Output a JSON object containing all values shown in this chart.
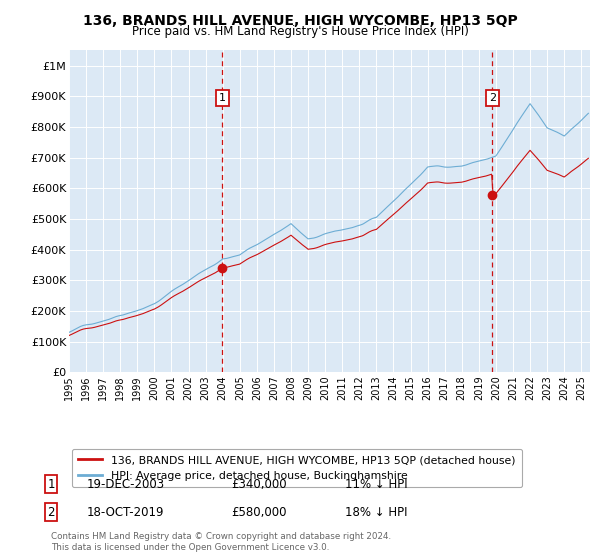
{
  "title": "136, BRANDS HILL AVENUE, HIGH WYCOMBE, HP13 5QP",
  "subtitle": "Price paid vs. HM Land Registry's House Price Index (HPI)",
  "background_color": "#dce9f5",
  "plot_bg_color": "#dce9f5",
  "legend_label_red": "136, BRANDS HILL AVENUE, HIGH WYCOMBE, HP13 5QP (detached house)",
  "legend_label_blue": "HPI: Average price, detached house, Buckinghamshire",
  "footer": "Contains HM Land Registry data © Crown copyright and database right 2024.\nThis data is licensed under the Open Government Licence v3.0.",
  "annotation1_date": "19-DEC-2003",
  "annotation1_price": "£340,000",
  "annotation1_pct": "11% ↓ HPI",
  "annotation2_date": "18-OCT-2019",
  "annotation2_price": "£580,000",
  "annotation2_pct": "18% ↓ HPI",
  "ylim": [
    0,
    1050000
  ],
  "yticks": [
    0,
    100000,
    200000,
    300000,
    400000,
    500000,
    600000,
    700000,
    800000,
    900000,
    1000000
  ],
  "ytick_labels": [
    "£0",
    "£100K",
    "£200K",
    "£300K",
    "£400K",
    "£500K",
    "£600K",
    "£700K",
    "£800K",
    "£900K",
    "£1M"
  ],
  "hpi_color": "#6dadd4",
  "price_color": "#cc1111",
  "vline_color": "#cc1111",
  "sale1_year": 2003.97,
  "sale1_price": 340000,
  "sale2_year": 2019.79,
  "sale2_price": 580000,
  "x_min": 1995.0,
  "x_max": 2025.5
}
